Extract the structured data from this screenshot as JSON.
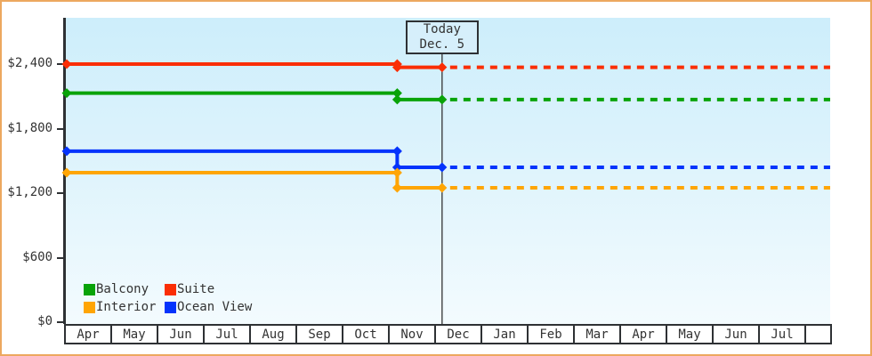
{
  "palette": {
    "frame_border": "#eca85f",
    "plot_bg_top": "#cdeefb",
    "plot_bg_bottom": "#f3fbfe",
    "axis": "#2e3134",
    "text": "#333333",
    "today_line": "#333333",
    "today_box_bg": "#d6effb"
  },
  "chart_data": {
    "type": "line",
    "title": "",
    "y_axis": {
      "min": 0,
      "max": 2400,
      "step": 600,
      "tick_labels": [
        "$0",
        "$600",
        "$1,200",
        "$1,800",
        "$2,400"
      ]
    },
    "x_axis": {
      "month_labels": [
        "Apr",
        "May",
        "Jun",
        "Jul",
        "Aug",
        "Sep",
        "Oct",
        "Nov",
        "Dec",
        "Jan",
        "Feb",
        "Mar",
        "Apr",
        "May",
        "Jun",
        "Jul"
      ]
    },
    "today": {
      "label": "Today",
      "date": "Dec. 5",
      "month_offset": 8.17
    },
    "series": [
      {
        "name": "Suite",
        "color": "#fa2e05",
        "price_start": 2400,
        "price_current": 2370,
        "drop_month_offset": 7.2,
        "projected_after_today": 2370
      },
      {
        "name": "Balcony",
        "color": "#09a309",
        "price_start": 2130,
        "price_current": 2070,
        "drop_month_offset": 7.2,
        "projected_after_today": 2070
      },
      {
        "name": "Ocean View",
        "color": "#0433fc",
        "price_start": 1590,
        "price_current": 1440,
        "drop_month_offset": 7.2,
        "projected_after_today": 1440
      },
      {
        "name": "Interior",
        "color": "#ffa504",
        "price_start": 1390,
        "price_current": 1250,
        "drop_month_offset": 7.2,
        "projected_after_today": 1250
      }
    ],
    "legend": {
      "rows": [
        [
          "Balcony",
          "Suite"
        ],
        [
          "Interior",
          "Ocean View"
        ]
      ],
      "position": "bottom-left"
    },
    "grid": "off"
  }
}
